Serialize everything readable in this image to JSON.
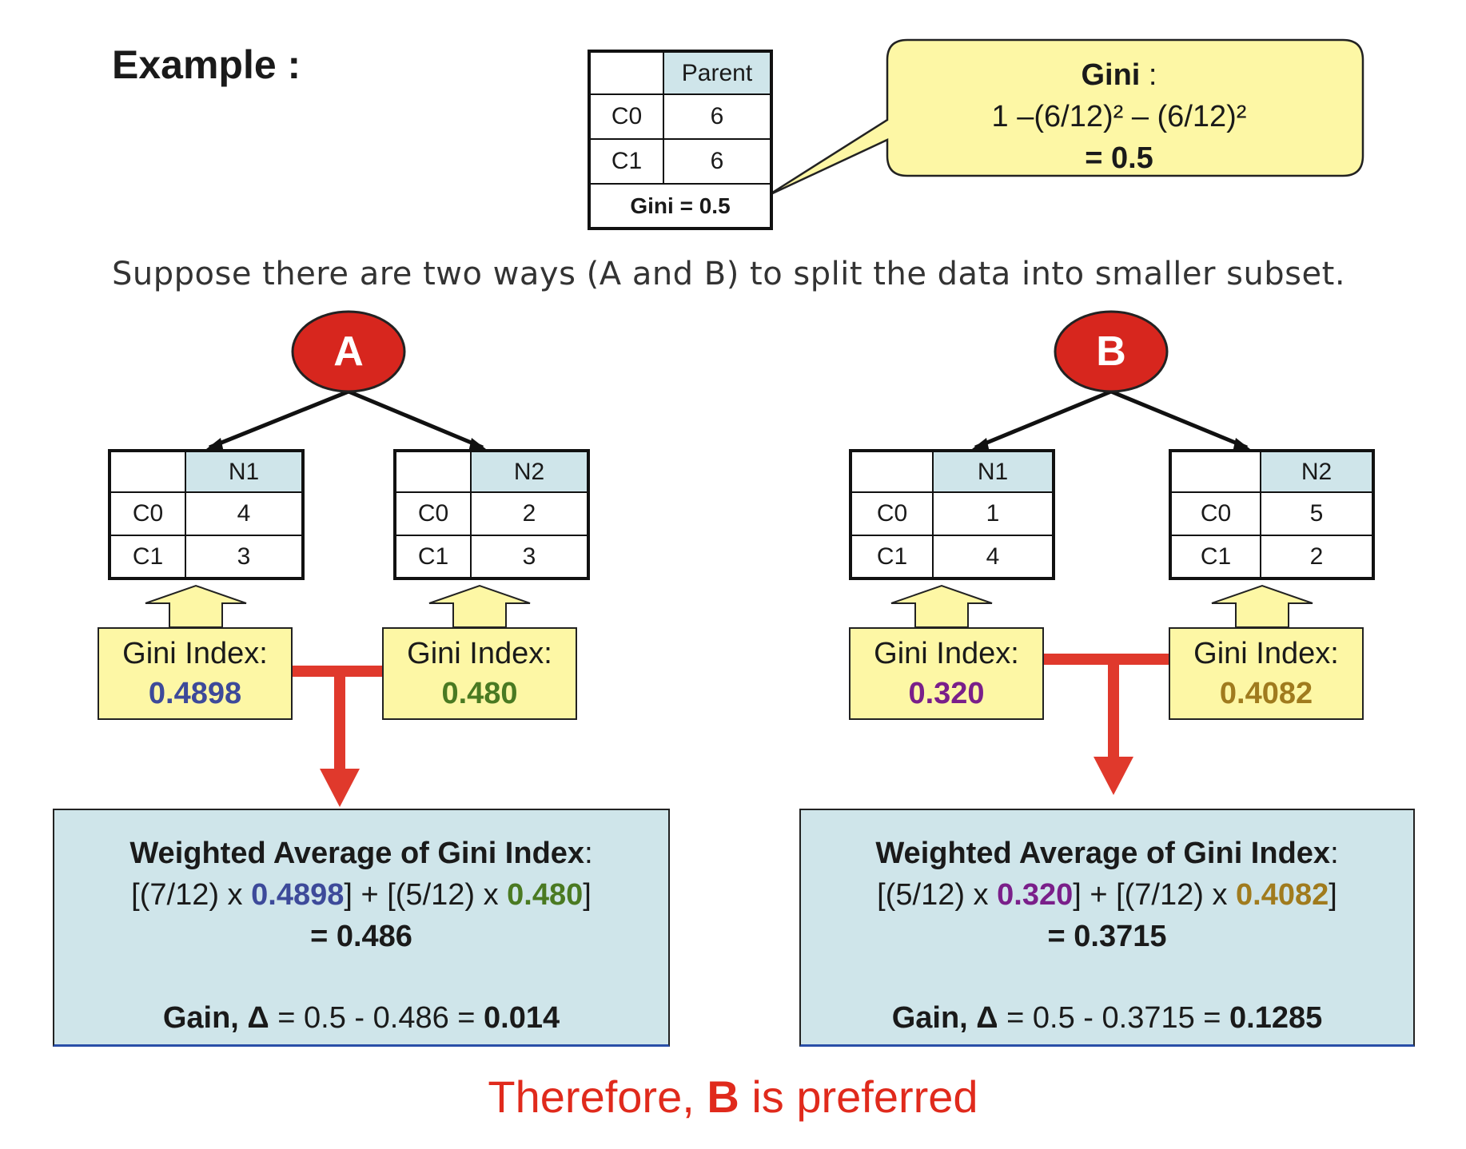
{
  "title": "Example :",
  "parent_table": {
    "header": "Parent",
    "rows": [
      {
        "label": "C0",
        "value": "6"
      },
      {
        "label": "C1",
        "value": "6"
      }
    ],
    "footer": "Gini = 0.5"
  },
  "callout": {
    "heading": "Gini",
    "colon": " :",
    "formula": "1 –(6/12)² – (6/12)²",
    "result": "= 0.5"
  },
  "intro_text": "Suppose there are two ways  (A and B) to split the data into smaller subset.",
  "splits": [
    {
      "name": "A",
      "nodes": [
        {
          "header": "N1",
          "rows": [
            {
              "label": "C0",
              "value": "4"
            },
            {
              "label": "C1",
              "value": "3"
            }
          ],
          "gini_label": "Gini Index:",
          "gini_value": "0.4898",
          "color": "#3d4a9a"
        },
        {
          "header": "N2",
          "rows": [
            {
              "label": "C0",
              "value": "2"
            },
            {
              "label": "C1",
              "value": "3"
            }
          ],
          "gini_label": "Gini Index:",
          "gini_value": "0.480",
          "color": "#4a7a22"
        }
      ],
      "weighted": {
        "heading": "Weighted Average of Gini Index",
        "colon": ":",
        "part1_prefix": "[(7/12) x ",
        "part1_value": "0.4898",
        "part2_prefix": "] + [(5/12) x ",
        "part2_value": "0.480",
        "suffix": "]",
        "result": "= 0.486",
        "gain_label": "Gain, Δ",
        "gain_expr": " = 0.5 - 0.486 = ",
        "gain_value": "0.014"
      }
    },
    {
      "name": "B",
      "nodes": [
        {
          "header": "N1",
          "rows": [
            {
              "label": "C0",
              "value": "1"
            },
            {
              "label": "C1",
              "value": "4"
            }
          ],
          "gini_label": "Gini Index:",
          "gini_value": "0.320",
          "color": "#7a1f8a"
        },
        {
          "header": "N2",
          "rows": [
            {
              "label": "C0",
              "value": "5"
            },
            {
              "label": "C1",
              "value": "2"
            }
          ],
          "gini_label": "Gini Index:",
          "gini_value": "0.4082",
          "color": "#a07b1e"
        }
      ],
      "weighted": {
        "heading": "Weighted Average of Gini Index",
        "colon": ":",
        "part1_prefix": "[(5/12) x ",
        "part1_value": "0.320",
        "part2_prefix": "] + [(7/12) x ",
        "part2_value": "0.4082",
        "suffix": "]",
        "result": "= 0.3715",
        "gain_label": "Gain, Δ",
        "gain_expr": " = 0.5 - 0.3715 = ",
        "gain_value": "0.1285"
      }
    }
  ],
  "conclusion": {
    "prefix": "Therefore, ",
    "highlight": "B",
    "suffix": " is preferred"
  },
  "colors": {
    "node_fill": "#d7261e",
    "arrow_red": "#e0392c",
    "table_header": "#cfe5ea",
    "gini_box": "#fdf7a5",
    "weighted_box": "#cfe5ea",
    "conclusion": "#e02a1c"
  }
}
